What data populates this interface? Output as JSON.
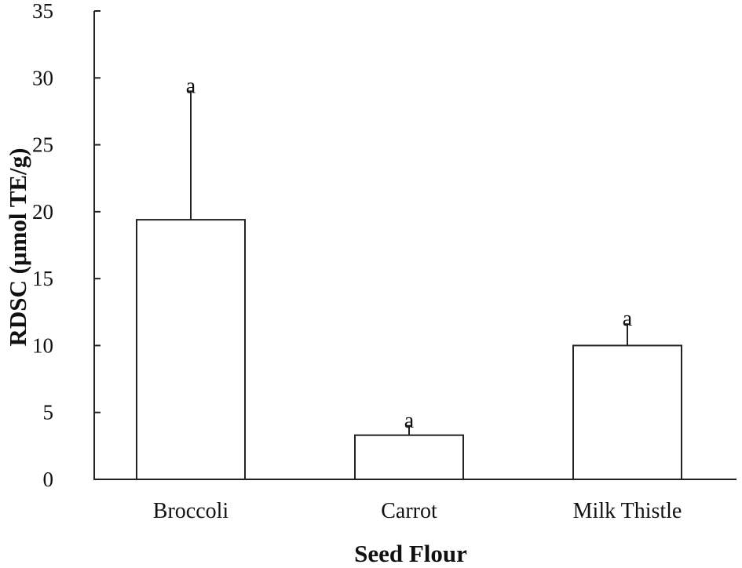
{
  "chart_data": {
    "type": "bar",
    "xlabel": "Seed Flour",
    "ylabel": "RDSC (μmol TE/g)",
    "ylim": [
      0,
      35
    ],
    "yticks": [
      0,
      5,
      10,
      15,
      20,
      25,
      30,
      35
    ],
    "categories": [
      "Broccoli",
      "Carrot",
      "Milk Thistle"
    ],
    "values": [
      19.4,
      3.3,
      10.0
    ],
    "error_upper": [
      29.0,
      4.0,
      11.6
    ],
    "significance_labels": [
      "a",
      "a",
      "a"
    ],
    "grid": false,
    "legend": "none",
    "colors": {
      "bar_fill": "#ffffff",
      "stroke": "#222222"
    }
  }
}
